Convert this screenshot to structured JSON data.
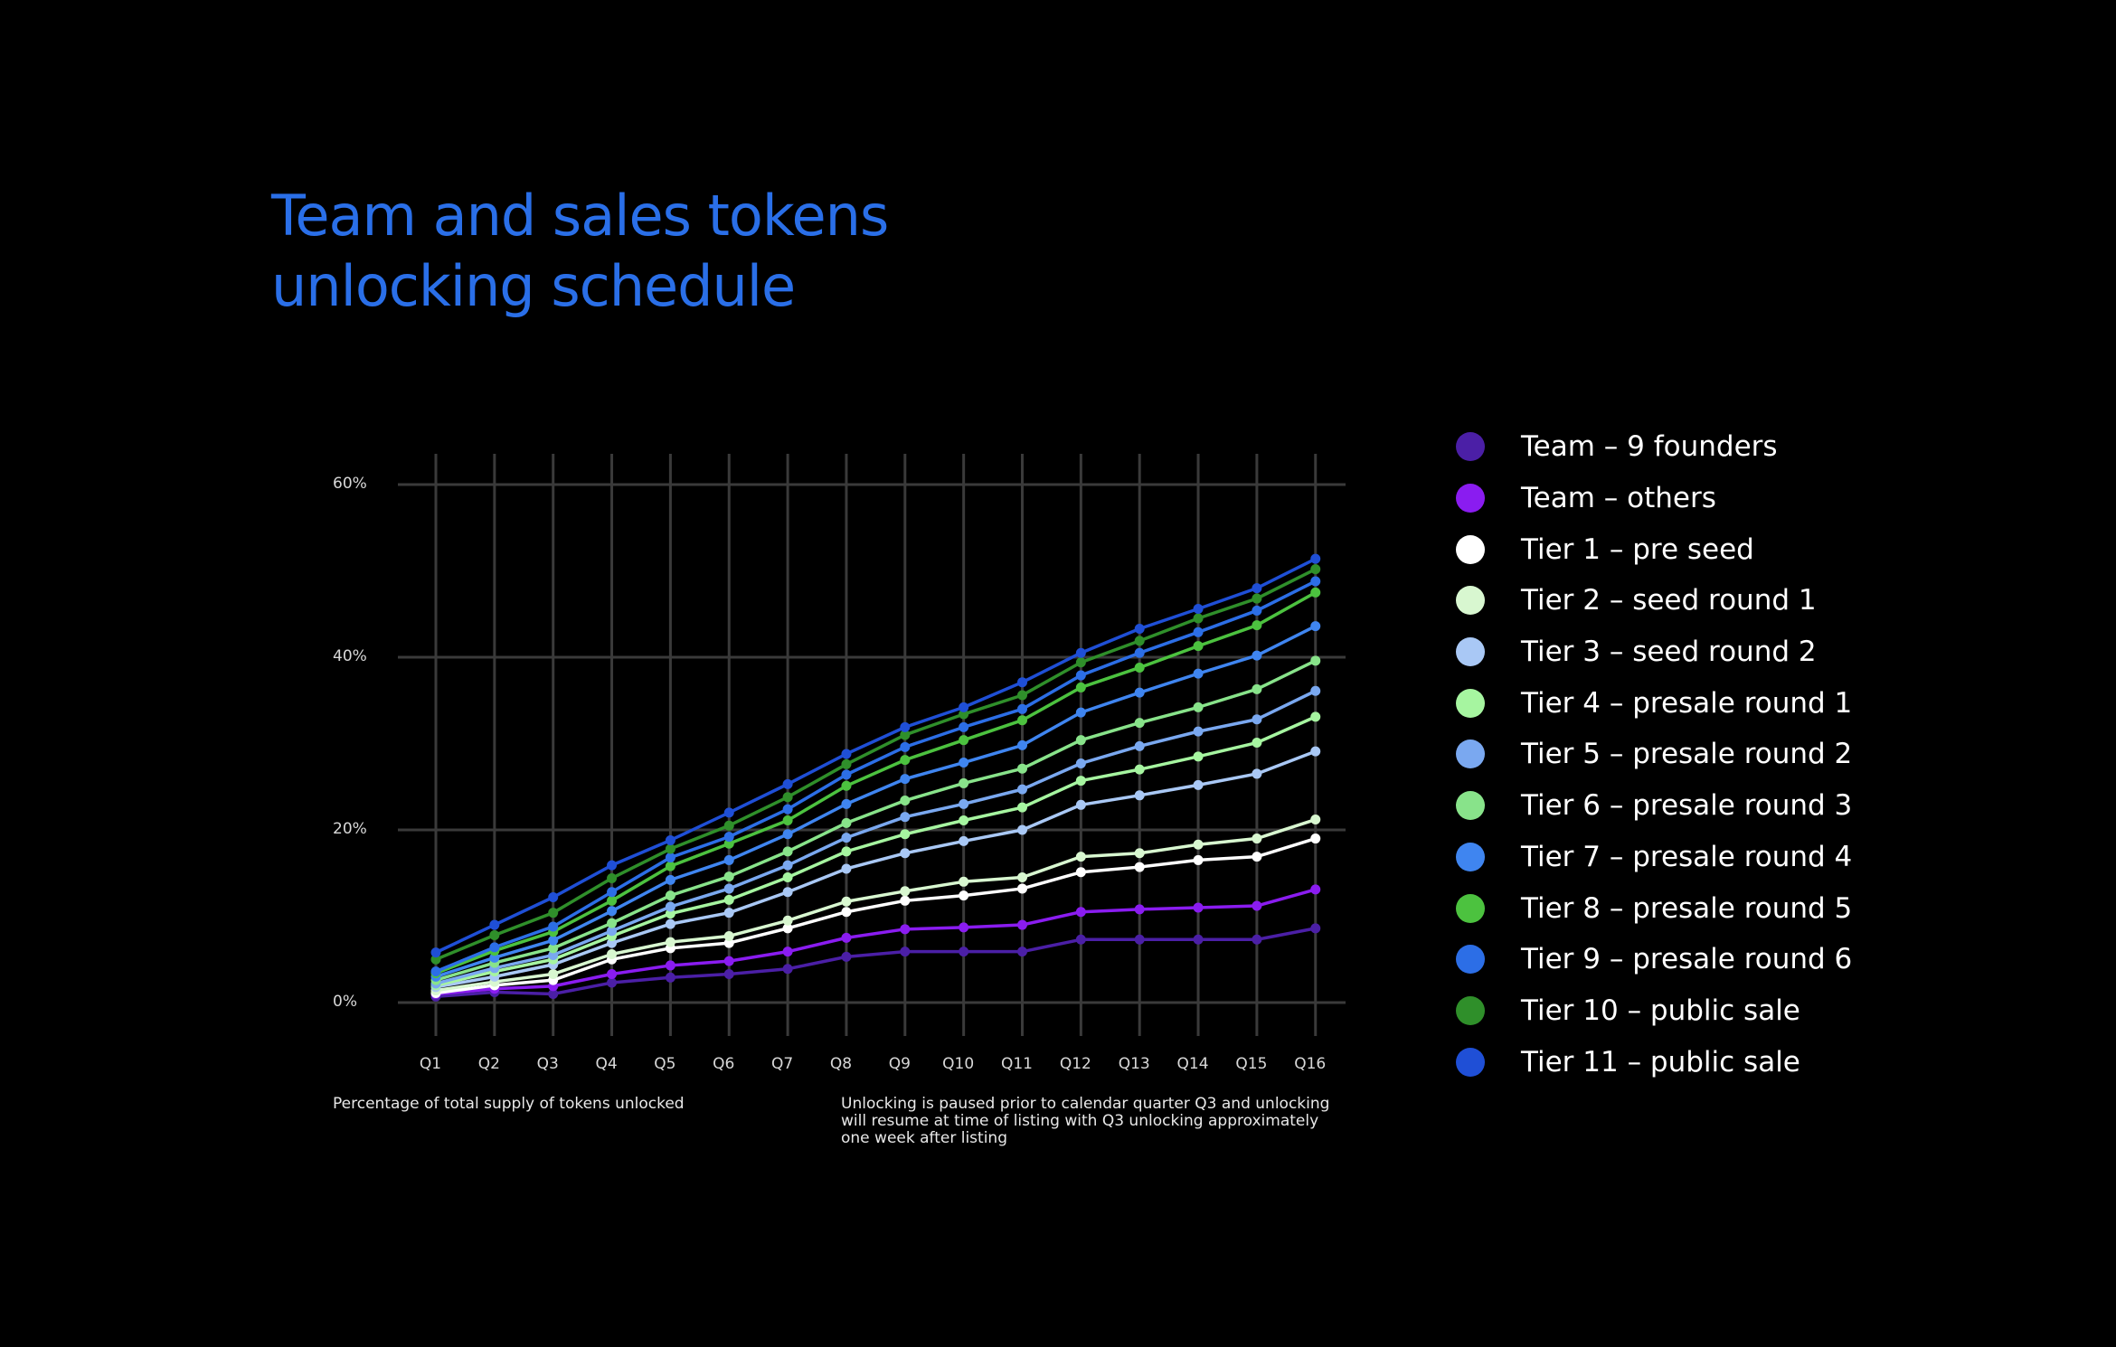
{
  "title_lines": [
    "Team and sales tokens",
    "unlocking schedule"
  ],
  "notes": {
    "left": "Percentage of total supply of tokens unlocked",
    "right": "Unlocking is paused prior to calendar quarter Q3 and unlocking will resume at time of listing with Q3 unlocking approximately one week after listing"
  },
  "chart_data": {
    "type": "line",
    "title": "Team and sales tokens unlocking schedule",
    "xlabel": "",
    "ylabel": "Percentage of total supply of tokens unlocked",
    "x": [
      "Q1",
      "Q2",
      "Q3",
      "Q4",
      "Q5",
      "Q6",
      "Q7",
      "Q8",
      "Q9",
      "Q10",
      "Q11",
      "Q12",
      "Q13",
      "Q14",
      "Q15",
      "Q16"
    ],
    "y_ticks": [
      "0%",
      "20%",
      "40%",
      "60%"
    ],
    "ylim": [
      0,
      60
    ],
    "grid": true,
    "legend_position": "right",
    "series": [
      {
        "name": "Team – 9 founders",
        "color": "#4b1fa6",
        "values": [
          0.7,
          1.2,
          1.0,
          2.3,
          2.9,
          3.3,
          3.9,
          5.3,
          5.9,
          5.9,
          5.9,
          7.3,
          7.3,
          7.3,
          7.3,
          8.6
        ]
      },
      {
        "name": "Team – others",
        "color": "#8a1cf0",
        "values": [
          1.0,
          1.6,
          1.9,
          3.3,
          4.3,
          4.8,
          5.9,
          7.5,
          8.5,
          8.7,
          9.0,
          10.5,
          10.8,
          11.0,
          11.2,
          13.1
        ]
      },
      {
        "name": "Tier 1 – pre seed",
        "color": "#ffffff",
        "values": [
          1.1,
          2.0,
          2.6,
          5.0,
          6.3,
          6.9,
          8.6,
          10.5,
          11.8,
          12.4,
          13.2,
          15.1,
          15.7,
          16.5,
          16.9,
          19.0
        ]
      },
      {
        "name": "Tier 2 – seed round 1",
        "color": "#d8f7d0",
        "values": [
          1.4,
          2.4,
          3.3,
          5.6,
          7.0,
          7.7,
          9.5,
          11.7,
          12.9,
          14.0,
          14.5,
          16.9,
          17.3,
          18.3,
          19.0,
          21.2
        ]
      },
      {
        "name": "Tier 3 – seed round 2",
        "color": "#a9c8f5",
        "values": [
          1.8,
          3.0,
          4.4,
          6.9,
          9.1,
          10.4,
          12.8,
          15.5,
          17.3,
          18.7,
          20.0,
          22.9,
          24.0,
          25.2,
          26.5,
          29.1
        ]
      },
      {
        "name": "Tier 4 – presale round 1",
        "color": "#a6f5a0",
        "values": [
          2.0,
          3.6,
          5.0,
          7.7,
          10.3,
          11.9,
          14.5,
          17.5,
          19.5,
          21.1,
          22.6,
          25.7,
          27.0,
          28.5,
          30.1,
          33.1
        ]
      },
      {
        "name": "Tier 5 – presale round 2",
        "color": "#7aa8f0",
        "values": [
          2.2,
          4.0,
          5.5,
          8.3,
          11.1,
          13.2,
          15.9,
          19.1,
          21.5,
          23.0,
          24.7,
          27.7,
          29.7,
          31.4,
          32.8,
          36.1
        ]
      },
      {
        "name": "Tier 6 – presale round 3",
        "color": "#88e38a",
        "values": [
          2.6,
          4.6,
          6.3,
          9.2,
          12.4,
          14.6,
          17.5,
          20.8,
          23.4,
          25.4,
          27.1,
          30.4,
          32.4,
          34.2,
          36.3,
          39.6
        ]
      },
      {
        "name": "Tier 7 – presale round 4",
        "color": "#3f85f0",
        "values": [
          3.0,
          5.2,
          7.2,
          10.6,
          14.2,
          16.5,
          19.5,
          23.0,
          25.9,
          27.8,
          29.8,
          33.6,
          35.9,
          38.1,
          40.2,
          43.6
        ]
      },
      {
        "name": "Tier 8 – presale round 5",
        "color": "#4cc23f",
        "values": [
          3.4,
          6.0,
          8.2,
          11.8,
          15.8,
          18.4,
          21.1,
          25.1,
          28.1,
          30.4,
          32.7,
          36.5,
          38.8,
          41.3,
          43.7,
          47.5
        ]
      },
      {
        "name": "Tier 9 – presale round 6",
        "color": "#2c6ee6",
        "values": [
          3.6,
          6.4,
          8.8,
          12.8,
          16.8,
          19.2,
          22.4,
          26.4,
          29.6,
          31.9,
          34.0,
          37.9,
          40.5,
          42.9,
          45.4,
          48.8
        ]
      },
      {
        "name": "Tier 10 – public sale",
        "color": "#2f8f2a",
        "values": [
          5.0,
          7.8,
          10.4,
          14.4,
          17.8,
          20.5,
          23.8,
          27.6,
          31.0,
          33.4,
          35.6,
          39.4,
          41.9,
          44.5,
          46.8,
          50.2
        ]
      },
      {
        "name": "Tier 11 – public sale",
        "color": "#1f4fd6",
        "values": [
          5.8,
          9.0,
          12.2,
          15.9,
          18.8,
          22.0,
          25.3,
          28.8,
          31.9,
          34.2,
          37.1,
          40.5,
          43.3,
          45.6,
          48.0,
          51.4
        ]
      }
    ]
  }
}
